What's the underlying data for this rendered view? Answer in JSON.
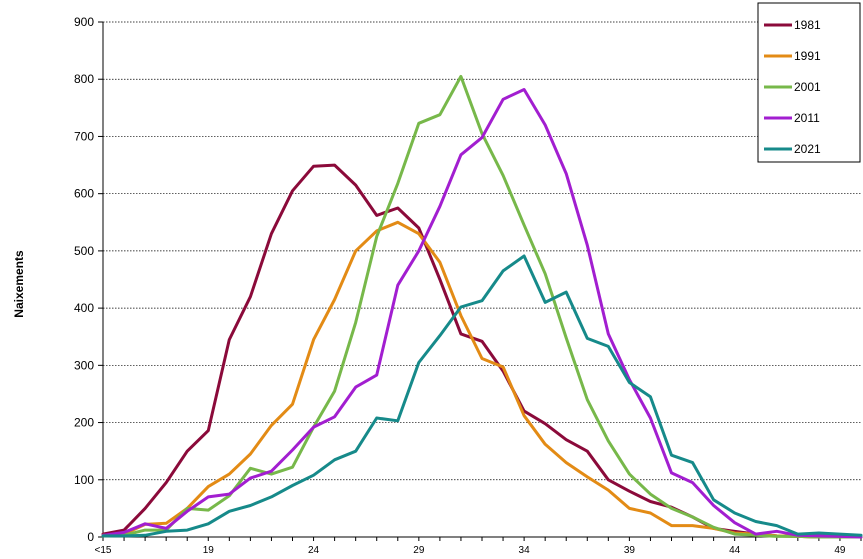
{
  "chart_data": {
    "type": "line",
    "ylabel": "Naixements",
    "xlabel": "",
    "ylim": [
      0,
      900
    ],
    "yticks": [
      0,
      100,
      200,
      300,
      400,
      500,
      600,
      700,
      800,
      900
    ],
    "x": [
      "<15",
      "15",
      "16",
      "17",
      "18",
      "19",
      "20",
      "21",
      "22",
      "23",
      "24",
      "25",
      "26",
      "27",
      "28",
      "29",
      "30",
      "31",
      "32",
      "33",
      "34",
      "35",
      "36",
      "37",
      "38",
      "39",
      "40",
      "41",
      "42",
      "43",
      "44",
      "45",
      "46",
      "47",
      "48",
      "49",
      "50"
    ],
    "xtick_labels": [
      "<15",
      "19",
      "24",
      "29",
      "34",
      "39",
      "44",
      "49"
    ],
    "grid": true,
    "legend_position": "top-right",
    "series": [
      {
        "name": "1981",
        "color": "#8B0A3A",
        "values": [
          5,
          12,
          50,
          95,
          150,
          186,
          345,
          420,
          530,
          605,
          648,
          650,
          615,
          562,
          575,
          540,
          450,
          355,
          342,
          290,
          220,
          198,
          170,
          150,
          100,
          80,
          62,
          52,
          35,
          15,
          10,
          5,
          2,
          1,
          0,
          0,
          0
        ]
      },
      {
        "name": "1991",
        "color": "#E38B15",
        "values": [
          3,
          5,
          22,
          24,
          50,
          88,
          110,
          145,
          195,
          232,
          345,
          415,
          500,
          535,
          550,
          530,
          480,
          387,
          312,
          297,
          212,
          162,
          130,
          105,
          82,
          50,
          42,
          20,
          20,
          15,
          7,
          5,
          2,
          1,
          0,
          0,
          0
        ]
      },
      {
        "name": "2001",
        "color": "#77B84A",
        "values": [
          2,
          3,
          12,
          12,
          50,
          47,
          72,
          120,
          110,
          122,
          192,
          255,
          375,
          525,
          618,
          723,
          738,
          805,
          705,
          632,
          545,
          460,
          348,
          240,
          168,
          110,
          75,
          50,
          35,
          17,
          5,
          3,
          1,
          1,
          0,
          0,
          0
        ]
      },
      {
        "name": "2011",
        "color": "#A21ED0",
        "values": [
          3,
          8,
          23,
          15,
          45,
          70,
          75,
          103,
          115,
          152,
          192,
          210,
          262,
          283,
          440,
          500,
          578,
          668,
          698,
          765,
          782,
          720,
          635,
          510,
          355,
          275,
          208,
          112,
          95,
          55,
          25,
          5,
          10,
          3,
          2,
          1,
          0
        ]
      },
      {
        "name": "2021",
        "color": "#168A8A",
        "values": [
          2,
          2,
          3,
          10,
          12,
          23,
          45,
          55,
          70,
          90,
          108,
          135,
          150,
          208,
          203,
          305,
          352,
          402,
          413,
          465,
          491,
          410,
          428,
          347,
          333,
          270,
          245,
          143,
          130,
          65,
          42,
          27,
          20,
          5,
          7,
          5,
          3
        ]
      }
    ]
  }
}
